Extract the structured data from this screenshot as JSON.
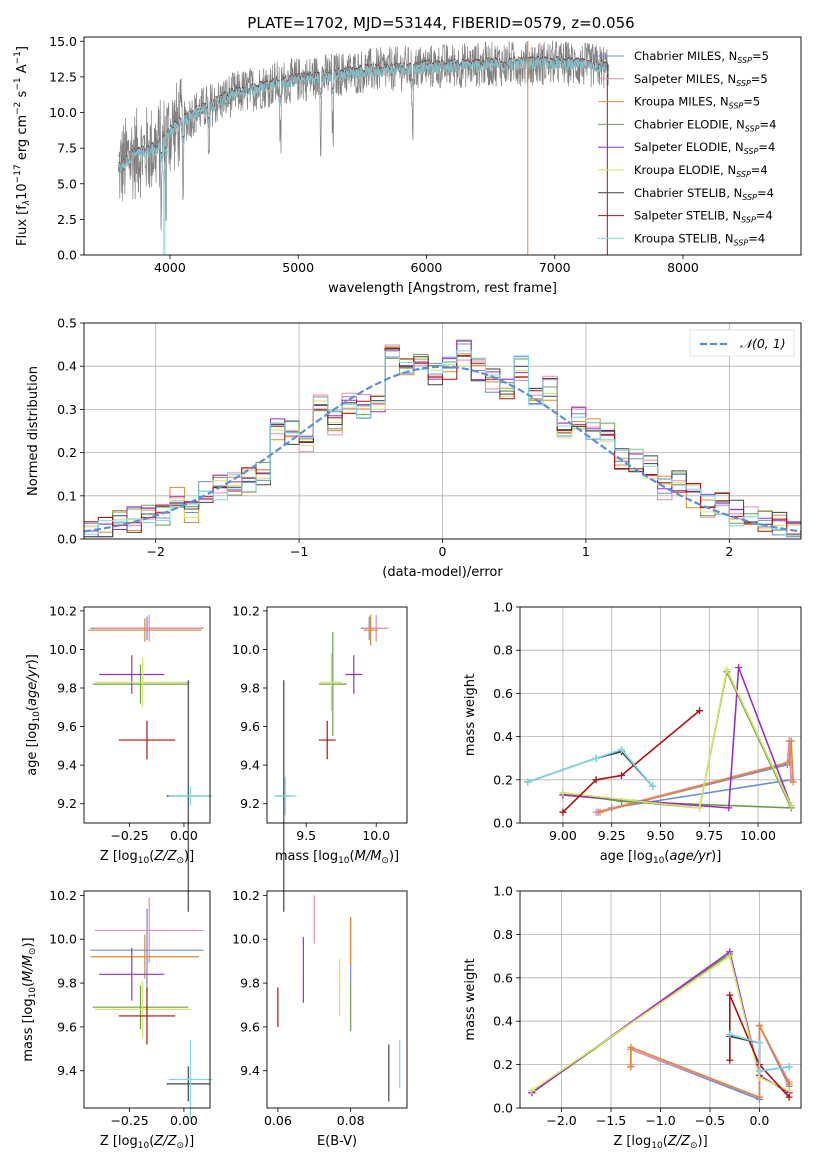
{
  "title": "PLATE=1702, MJD=53144, FIBERID=0579, z=0.056",
  "colors": {
    "Chabrier MILES": "#6b8ed6",
    "Salpeter MILES": "#e88ab8",
    "Kroupa MILES": "#dd8a3a",
    "Chabrier ELODIE": "#6d9f4b",
    "Salpeter ELODIE": "#9b30c0",
    "Kroupa ELODIE": "#d6e36a",
    "Chabrier STELIB": "#444444",
    "Salpeter STELIB": "#b01010",
    "Kroupa STELIB": "#7dd8e6",
    "data": "#808080",
    "gaussian": "#5b8fd6"
  },
  "chart_data": [
    {
      "id": "spectrum",
      "type": "line",
      "xlabel": "wavelength [Angstrom, rest frame]",
      "ylabel": "Flux [f_λ 10^-17 erg cm^-2 s^-1 A^-1]",
      "xlim": [
        3330,
        8920
      ],
      "ylim": [
        0,
        15.3
      ],
      "xticks": [
        4000,
        5000,
        6000,
        7000,
        8000
      ],
      "yticks": [
        0.0,
        2.5,
        5.0,
        7.5,
        10.0,
        12.5,
        15.0
      ],
      "series_summary": {
        "data_range_angstrom": [
          3600,
          7420
        ],
        "continuum_points": [
          [
            3600,
            6.0
          ],
          [
            3700,
            7.0
          ],
          [
            3900,
            7.5
          ],
          [
            4000,
            8.7
          ],
          [
            4200,
            10.0
          ],
          [
            4500,
            11.3
          ],
          [
            4800,
            12.0
          ],
          [
            5000,
            12.3
          ],
          [
            5500,
            12.9
          ],
          [
            6000,
            13.2
          ],
          [
            6500,
            13.4
          ],
          [
            7000,
            13.5
          ],
          [
            7400,
            13.2
          ]
        ]
      },
      "legend": [
        {
          "name": "Chabrier MILES",
          "nssp": "5"
        },
        {
          "name": "Salpeter MILES",
          "nssp": "5"
        },
        {
          "name": "Kroupa MILES",
          "nssp": "5"
        },
        {
          "name": "Chabrier ELODIE",
          "nssp": "4"
        },
        {
          "name": "Salpeter ELODIE",
          "nssp": "4"
        },
        {
          "name": "Kroupa ELODIE",
          "nssp": "4"
        },
        {
          "name": "Chabrier STELIB",
          "nssp": "4"
        },
        {
          "name": "Salpeter STELIB",
          "nssp": "4"
        },
        {
          "name": "Kroupa STELIB",
          "nssp": "4"
        }
      ],
      "legend_placement": "upper-right"
    },
    {
      "id": "residual_hist",
      "type": "line",
      "xlabel": "(data-model)/error",
      "ylabel": "Normed distribution",
      "xlim": [
        -2.5,
        2.5
      ],
      "ylim": [
        0,
        0.5
      ],
      "xticks": [
        -2,
        -1,
        0,
        1,
        2
      ],
      "yticks": [
        0.0,
        0.1,
        0.2,
        0.3,
        0.4,
        0.5
      ],
      "grid": true,
      "legend": "𝒩(0, 1)",
      "legend_placement": "upper-right",
      "bins": [
        -2.5,
        -2.4,
        -2.3,
        -2.2,
        -2.1,
        -2.0,
        -1.9,
        -1.8,
        -1.7,
        -1.6,
        -1.5,
        -1.4,
        -1.3,
        -1.2,
        -1.1,
        -1.0,
        -0.9,
        -0.8,
        -0.7,
        -0.6,
        -0.5,
        -0.4,
        -0.3,
        -0.2,
        -0.1,
        0.0,
        0.1,
        0.2,
        0.3,
        0.4,
        0.5,
        0.6,
        0.7,
        0.8,
        0.9,
        1.0,
        1.1,
        1.2,
        1.3,
        1.4,
        1.5,
        1.6,
        1.7,
        1.8,
        1.9,
        2.0,
        2.1,
        2.2,
        2.3,
        2.4
      ],
      "heights": [
        0.018,
        0.025,
        0.04,
        0.045,
        0.05,
        0.062,
        0.09,
        0.065,
        0.105,
        0.12,
        0.13,
        0.135,
        0.15,
        0.25,
        0.245,
        0.21,
        0.325,
        0.27,
        0.31,
        0.31,
        0.32,
        0.44,
        0.4,
        0.4,
        0.385,
        0.395,
        0.43,
        0.39,
        0.365,
        0.35,
        0.395,
        0.32,
        0.35,
        0.26,
        0.285,
        0.255,
        0.24,
        0.19,
        0.18,
        0.17,
        0.12,
        0.135,
        0.1,
        0.075,
        0.08,
        0.06,
        0.055,
        0.04,
        0.035,
        0.025
      ]
    },
    {
      "id": "age_vs_Z",
      "type": "scatter",
      "xlabel": "Z [log10(Z/Z⊙)]",
      "ylabel": "age [log10(age/yr)]",
      "xlim": [
        -0.46,
        0.12
      ],
      "ylim": [
        9.1,
        10.22
      ],
      "xticks": [
        -0.25,
        0.0
      ],
      "yticks": [
        9.2,
        9.4,
        9.6,
        9.8,
        10.0,
        10.2
      ],
      "points": [
        {
          "s": "Chabrier MILES",
          "x": -0.17,
          "y": 10.11,
          "xe": 0.26,
          "ye": 0.06
        },
        {
          "s": "Salpeter MILES",
          "x": -0.16,
          "y": 10.11,
          "xe": 0.25,
          "ye": 0.07
        },
        {
          "s": "Kroupa MILES",
          "x": -0.18,
          "y": 10.1,
          "xe": 0.26,
          "ye": 0.06
        },
        {
          "s": "Chabrier ELODIE",
          "x": -0.2,
          "y": 9.82,
          "xe": 0.22,
          "ye": 0.1
        },
        {
          "s": "Salpeter ELODIE",
          "x": -0.24,
          "y": 9.87,
          "xe": 0.15,
          "ye": 0.1
        },
        {
          "s": "Kroupa ELODIE",
          "x": -0.19,
          "y": 9.83,
          "xe": 0.22,
          "ye": 0.13
        },
        {
          "s": "Chabrier STELIB",
          "x": 0.02,
          "y": 9.24,
          "xe": 0.1,
          "ye": 0.6
        },
        {
          "s": "Salpeter STELIB",
          "x": -0.17,
          "y": 9.53,
          "xe": 0.13,
          "ye": 0.1
        },
        {
          "s": "Kroupa STELIB",
          "x": 0.03,
          "y": 9.24,
          "xe": 0.1,
          "ye": 0.05
        }
      ]
    },
    {
      "id": "age_vs_mass",
      "type": "scatter",
      "xlabel": "mass [log10(M/M⊙)]",
      "ylabel": "",
      "xlim": [
        9.22,
        10.22
      ],
      "ylim": [
        9.1,
        10.22
      ],
      "xticks": [
        9.5,
        10.0
      ],
      "yticks": [
        9.2,
        9.4,
        9.6,
        9.8,
        10.0,
        10.2
      ],
      "points": [
        {
          "s": "Chabrier MILES",
          "x": 9.95,
          "y": 10.11,
          "xe": 0.06,
          "ye": 0.06
        },
        {
          "s": "Salpeter MILES",
          "x": 10.0,
          "y": 10.11,
          "xe": 0.09,
          "ye": 0.07
        },
        {
          "s": "Kroupa MILES",
          "x": 9.96,
          "y": 10.1,
          "xe": 0.05,
          "ye": 0.08
        },
        {
          "s": "Chabrier ELODIE",
          "x": 9.69,
          "y": 9.82,
          "xe": 0.1,
          "ye": 0.27
        },
        {
          "s": "Salpeter ELODIE",
          "x": 9.84,
          "y": 9.87,
          "xe": 0.06,
          "ye": 0.1
        },
        {
          "s": "Kroupa ELODIE",
          "x": 9.68,
          "y": 9.83,
          "xe": 0.08,
          "ye": 0.15
        },
        {
          "s": "Chabrier STELIB",
          "x": 9.34,
          "y": 9.24,
          "xe": 0.05,
          "ye": 0.6
        },
        {
          "s": "Salpeter STELIB",
          "x": 9.65,
          "y": 9.53,
          "xe": 0.06,
          "ye": 0.1
        },
        {
          "s": "Kroupa STELIB",
          "x": 9.35,
          "y": 9.24,
          "xe": 0.08,
          "ye": 0.1
        }
      ]
    },
    {
      "id": "mass_weight_vs_age",
      "type": "line",
      "xlabel": "age [log10(age/yr)]",
      "ylabel": "mass weight",
      "xlim": [
        8.78,
        10.22
      ],
      "ylim": [
        0,
        1.0
      ],
      "xticks": [
        9.0,
        9.25,
        9.5,
        9.75,
        10.0
      ],
      "yticks": [
        0.0,
        0.2,
        0.4,
        0.6,
        0.8,
        1.0
      ],
      "grid": true,
      "series": [
        {
          "name": "Chabrier MILES",
          "points": [
            [
              9.18,
              0.05
            ],
            [
              10.15,
              0.27
            ],
            [
              10.16,
              0.38
            ],
            [
              10.17,
              0.2
            ],
            [
              9.25,
              0.07
            ]
          ]
        },
        {
          "name": "Salpeter MILES",
          "points": [
            [
              9.17,
              0.05
            ],
            [
              10.15,
              0.28
            ],
            [
              10.16,
              0.38
            ],
            [
              10.17,
              0.2
            ]
          ]
        },
        {
          "name": "Kroupa MILES",
          "points": [
            [
              9.19,
              0.05
            ],
            [
              10.16,
              0.28
            ],
            [
              10.17,
              0.38
            ],
            [
              10.18,
              0.19
            ]
          ]
        },
        {
          "name": "Chabrier ELODIE",
          "points": [
            [
              9.0,
              0.13
            ],
            [
              9.7,
              0.07
            ],
            [
              9.84,
              0.7
            ],
            [
              10.17,
              0.07
            ],
            [
              9.3,
              0.1
            ],
            [
              9.0,
              0.14
            ]
          ]
        },
        {
          "name": "Salpeter ELODIE",
          "points": [
            [
              9.0,
              0.13
            ],
            [
              9.85,
              0.07
            ],
            [
              9.9,
              0.72
            ],
            [
              10.17,
              0.08
            ]
          ]
        },
        {
          "name": "Kroupa ELODIE",
          "points": [
            [
              9.0,
              0.14
            ],
            [
              9.7,
              0.07
            ],
            [
              9.84,
              0.71
            ],
            [
              10.17,
              0.08
            ]
          ]
        },
        {
          "name": "Chabrier STELIB",
          "points": [
            [
              8.82,
              0.19
            ],
            [
              9.17,
              0.3
            ],
            [
              9.3,
              0.33
            ],
            [
              9.46,
              0.17
            ]
          ]
        },
        {
          "name": "Salpeter STELIB",
          "points": [
            [
              9.0,
              0.05
            ],
            [
              9.17,
              0.2
            ],
            [
              9.3,
              0.22
            ],
            [
              9.7,
              0.52
            ]
          ]
        },
        {
          "name": "Kroupa STELIB",
          "points": [
            [
              8.82,
              0.19
            ],
            [
              9.17,
              0.3
            ],
            [
              9.3,
              0.34
            ],
            [
              9.46,
              0.17
            ]
          ]
        }
      ]
    },
    {
      "id": "mass_vs_Z",
      "type": "scatter",
      "xlabel": "Z [log10(Z/Z⊙)]",
      "ylabel": "mass [log10(M/M⊙)]",
      "xlim": [
        -0.46,
        0.12
      ],
      "ylim": [
        9.23,
        10.22
      ],
      "xticks": [
        -0.25,
        0.0
      ],
      "yticks": [
        9.4,
        9.6,
        9.8,
        10.0,
        10.2
      ],
      "points": [
        {
          "s": "Chabrier MILES",
          "x": -0.17,
          "y": 9.95,
          "xe": 0.26,
          "ye": 0.19
        },
        {
          "s": "Salpeter MILES",
          "x": -0.16,
          "y": 10.04,
          "xe": 0.25,
          "ye": 0.15
        },
        {
          "s": "Kroupa MILES",
          "x": -0.18,
          "y": 9.92,
          "xe": 0.25,
          "ye": 0.1
        },
        {
          "s": "Chabrier ELODIE",
          "x": -0.2,
          "y": 9.69,
          "xe": 0.22,
          "ye": 0.1
        },
        {
          "s": "Salpeter ELODIE",
          "x": -0.24,
          "y": 9.84,
          "xe": 0.15,
          "ye": 0.12
        },
        {
          "s": "Kroupa ELODIE",
          "x": -0.19,
          "y": 9.68,
          "xe": 0.22,
          "ye": 0.13
        },
        {
          "s": "Chabrier STELIB",
          "x": 0.02,
          "y": 9.34,
          "xe": 0.1,
          "ye": 0.08
        },
        {
          "s": "Salpeter STELIB",
          "x": -0.17,
          "y": 9.65,
          "xe": 0.13,
          "ye": 0.13
        },
        {
          "s": "Kroupa STELIB",
          "x": 0.03,
          "y": 9.36,
          "xe": 0.1,
          "ye": 0.18
        }
      ]
    },
    {
      "id": "mass_vs_ebv",
      "type": "scatter",
      "xlabel": "E(B-V)",
      "ylabel": "",
      "xlim": [
        0.057,
        0.0955
      ],
      "ylim": [
        9.23,
        10.22
      ],
      "xticks": [
        0.06,
        0.08
      ],
      "yticks": [
        9.4,
        9.6,
        9.8,
        10.0,
        10.2
      ],
      "points": [
        {
          "s": "Chabrier MILES",
          "x": 0.08,
          "y": 9.95,
          "ye": 0.15
        },
        {
          "s": "Salpeter MILES",
          "x": 0.07,
          "y": 10.09,
          "ye": 0.11
        },
        {
          "s": "Kroupa MILES",
          "x": 0.08,
          "y": 9.99,
          "ye": 0.11
        },
        {
          "s": "Chabrier ELODIE",
          "x": 0.08,
          "y": 9.69,
          "ye": 0.11
        },
        {
          "s": "Salpeter ELODIE",
          "x": 0.067,
          "y": 9.86,
          "ye": 0.15
        },
        {
          "s": "Kroupa ELODIE",
          "x": 0.077,
          "y": 9.78,
          "ye": 0.13
        },
        {
          "s": "Chabrier STELIB",
          "x": 0.0905,
          "y": 9.39,
          "ye": 0.13
        },
        {
          "s": "Salpeter STELIB",
          "x": 0.06,
          "y": 9.69,
          "ye": 0.09
        },
        {
          "s": "Kroupa STELIB",
          "x": 0.0935,
          "y": 9.43,
          "ye": 0.11
        }
      ]
    },
    {
      "id": "mass_weight_vs_Z",
      "type": "line",
      "xlabel": "Z [log10(Z/Z⊙)]",
      "ylabel": "mass weight",
      "xlim": [
        -2.42,
        0.42
      ],
      "ylim": [
        0,
        1.0
      ],
      "xticks": [
        -2.0,
        -1.5,
        -1.0,
        -0.5,
        0.0
      ],
      "yticks": [
        0.0,
        0.2,
        0.4,
        0.6,
        0.8,
        1.0
      ],
      "grid": true,
      "series": [
        {
          "name": "Chabrier MILES",
          "points": [
            [
              -1.3,
              0.19
            ],
            [
              -1.3,
              0.27
            ],
            [
              0.0,
              0.04
            ],
            [
              0.0,
              0.38
            ],
            [
              0.3,
              0.1
            ]
          ]
        },
        {
          "name": "Salpeter MILES",
          "points": [
            [
              -1.3,
              0.2
            ],
            [
              -1.3,
              0.27
            ],
            [
              0.0,
              0.05
            ],
            [
              0.0,
              0.38
            ],
            [
              0.3,
              0.12
            ]
          ]
        },
        {
          "name": "Kroupa MILES",
          "points": [
            [
              -1.3,
              0.19
            ],
            [
              -1.3,
              0.28
            ],
            [
              0.0,
              0.05
            ],
            [
              0.0,
              0.38
            ],
            [
              0.3,
              0.11
            ]
          ]
        },
        {
          "name": "Chabrier ELODIE",
          "points": [
            [
              -2.3,
              0.07
            ],
            [
              -0.3,
              0.71
            ],
            [
              0.0,
              0.15
            ],
            [
              0.3,
              0.07
            ]
          ]
        },
        {
          "name": "Salpeter ELODIE",
          "points": [
            [
              -2.3,
              0.07
            ],
            [
              -0.3,
              0.72
            ],
            [
              0.0,
              0.15
            ],
            [
              0.3,
              0.07
            ]
          ]
        },
        {
          "name": "Kroupa ELODIE",
          "points": [
            [
              -2.3,
              0.08
            ],
            [
              -0.3,
              0.7
            ],
            [
              0.0,
              0.14
            ],
            [
              0.3,
              0.08
            ]
          ]
        },
        {
          "name": "Chabrier STELIB",
          "points": [
            [
              -0.3,
              0.33
            ],
            [
              0.0,
              0.3
            ],
            [
              0.0,
              0.17
            ],
            [
              0.3,
              0.19
            ]
          ]
        },
        {
          "name": "Salpeter STELIB",
          "points": [
            [
              -0.3,
              0.22
            ],
            [
              -0.3,
              0.52
            ],
            [
              0.0,
              0.2
            ],
            [
              0.3,
              0.05
            ]
          ]
        },
        {
          "name": "Kroupa STELIB",
          "points": [
            [
              -0.3,
              0.34
            ],
            [
              0.0,
              0.3
            ],
            [
              0.0,
              0.17
            ],
            [
              0.3,
              0.19
            ]
          ]
        }
      ]
    }
  ]
}
